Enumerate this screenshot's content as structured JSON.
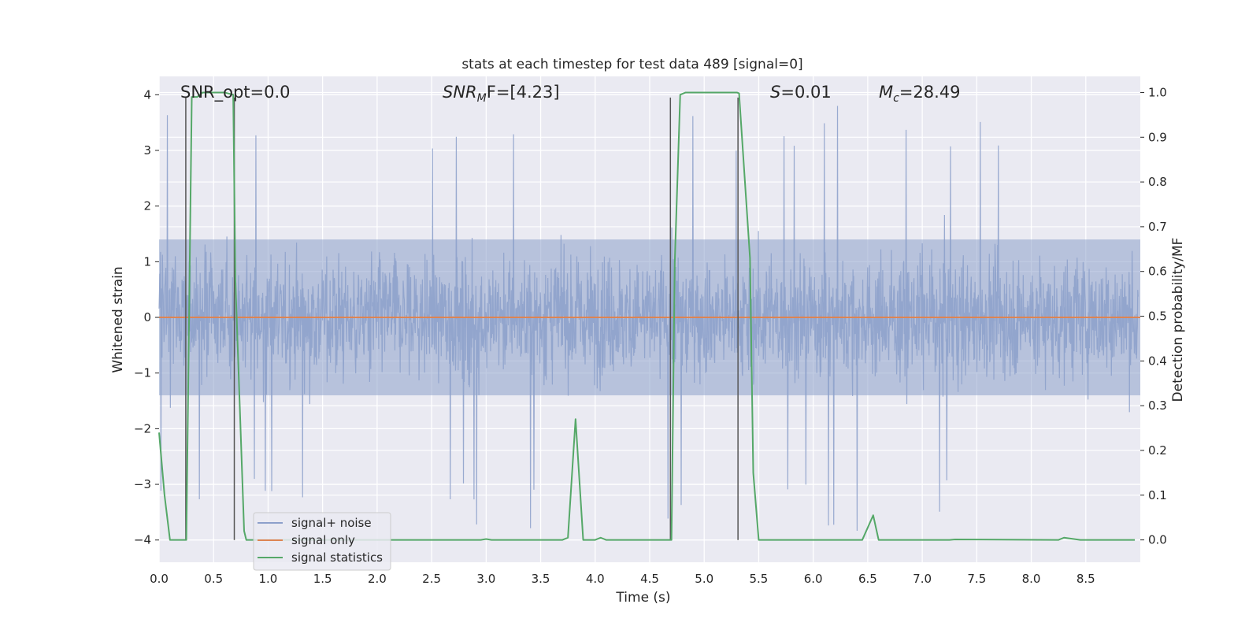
{
  "chart_data": {
    "type": "line",
    "title": "stats at each timestep for test data 489 [signal=0]",
    "xlabel": "Time (s)",
    "ylabel_left": "Whitened strain",
    "ylabel_right": "Detection probability/MF",
    "xlim": [
      0.0,
      9.0
    ],
    "ylim_left": [
      -4.4,
      4.33
    ],
    "ylim_right": [
      -0.05,
      1.036
    ],
    "x_ticks": [
      0.0,
      0.5,
      1.0,
      1.5,
      2.0,
      2.5,
      3.0,
      3.5,
      4.0,
      4.5,
      5.0,
      5.5,
      6.0,
      6.5,
      7.0,
      7.5,
      8.0,
      8.5
    ],
    "x_tick_labels": [
      "0.0",
      "0.5",
      "1.0",
      "1.5",
      "2.0",
      "2.5",
      "3.0",
      "3.5",
      "4.0",
      "4.5",
      "5.0",
      "5.5",
      "6.0",
      "6.5",
      "7.0",
      "7.5",
      "8.0",
      "8.5"
    ],
    "y_ticks_left": [
      4,
      3,
      2,
      1,
      0,
      -1,
      -2,
      -3,
      -4
    ],
    "y_tick_labels_left": [
      "4",
      "3",
      "2",
      "1",
      "0",
      "−1",
      "−2",
      "−3",
      "−4"
    ],
    "y_ticks_right": [
      1.0,
      0.9,
      0.8,
      0.7,
      0.6,
      0.5,
      0.4,
      0.3,
      0.2,
      0.1,
      0.0
    ],
    "y_tick_labels_right": [
      "1.0",
      "0.9",
      "0.8",
      "0.7",
      "0.6",
      "0.5",
      "0.4",
      "0.3",
      "0.2",
      "0.1",
      "0.0"
    ],
    "grid": true,
    "legend_position": "bottom-left",
    "legend": [
      "signal+ noise",
      "signal only",
      "signal statistics"
    ],
    "series": [
      {
        "name": "signal+ noise",
        "color": "#8da0cb",
        "description": "whitened noise fluctuating roughly between -3.9 and 3.9",
        "typical_envelope": [
          -2.0,
          2.5
        ],
        "peak_min": -3.9,
        "peak_max": 3.9
      },
      {
        "name": "signal only",
        "color": "#dd8452",
        "values_constant": 0.0
      },
      {
        "name": "signal statistics",
        "color": "#55a868",
        "axis": "right",
        "x": [
          0.0,
          0.05,
          0.1,
          0.25,
          0.3,
          0.35,
          0.4,
          0.5,
          0.6,
          0.68,
          0.7,
          0.74,
          0.78,
          0.8,
          0.85,
          0.9,
          1.0,
          2.0,
          2.95,
          3.0,
          3.05,
          3.7,
          3.75,
          3.82,
          3.89,
          3.95,
          4.0,
          4.05,
          4.1,
          4.5,
          4.7,
          4.73,
          4.78,
          4.83,
          5.3,
          5.32,
          5.42,
          5.45,
          5.5,
          6.0,
          6.45,
          6.55,
          6.6,
          6.7,
          7.0,
          7.25,
          7.3,
          8.25,
          8.3,
          8.45,
          8.6,
          8.95
        ],
        "y": [
          0.24,
          0.1,
          0.0,
          0.0,
          0.99,
          0.99,
          1.0,
          1.0,
          1.0,
          0.995,
          0.58,
          0.3,
          0.02,
          0.0,
          0.0,
          0.0,
          0.0,
          0.0,
          0.0,
          0.002,
          0.0,
          0.0,
          0.005,
          0.27,
          0.0,
          0.0,
          0.0,
          0.005,
          0.0,
          0.0,
          0.0,
          0.62,
          0.995,
          1.0,
          1.0,
          0.998,
          0.63,
          0.15,
          0.0,
          0.0,
          0.0,
          0.055,
          0.0,
          0.0,
          0.0,
          0.0,
          0.001,
          0.0,
          0.005,
          0.0,
          0.0,
          0.0
        ]
      }
    ],
    "vertical_markers_s": [
      0.245,
      0.69,
      4.69,
      5.31
    ],
    "annotations": {
      "snr_opt": "SNR_opt=0.0",
      "snr_mf_base": "SNR",
      "snr_mf_sub": "M",
      "snr_mf_rest": "F=[4.23]",
      "s_symbol": "S",
      "s_value": "=0.01",
      "mc_symbol": "M",
      "mc_sub": "c",
      "mc_value": "=28.49"
    }
  }
}
